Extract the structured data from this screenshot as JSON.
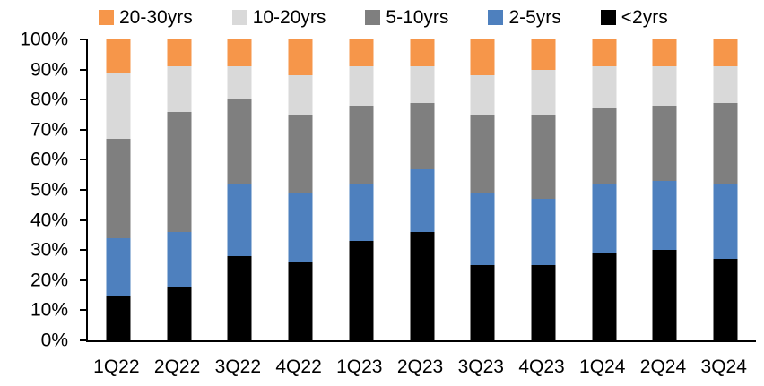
{
  "colors": {
    "background": "#ffffff",
    "axis": "#000000",
    "text": "#000000"
  },
  "chart_data": {
    "type": "bar",
    "stacked": true,
    "percent_stacked": true,
    "title": "",
    "xlabel": "",
    "ylabel": "",
    "ylim": [
      0,
      100
    ],
    "grid": false,
    "legend_position": "top",
    "categories": [
      "1Q22",
      "2Q22",
      "3Q22",
      "4Q22",
      "1Q23",
      "2Q23",
      "3Q23",
      "4Q23",
      "1Q24",
      "2Q24",
      "3Q24"
    ],
    "series": [
      {
        "name": "<2yrs",
        "color": "#000000",
        "values": [
          15,
          18,
          28,
          26,
          33,
          36,
          25,
          25,
          29,
          30,
          27
        ]
      },
      {
        "name": "2-5yrs",
        "color": "#4E80BE",
        "values": [
          19,
          18,
          24,
          23,
          19,
          21,
          24,
          22,
          23,
          23,
          25
        ]
      },
      {
        "name": "5-10yrs",
        "color": "#7F7F7F",
        "values": [
          33,
          40,
          28,
          26,
          26,
          22,
          26,
          28,
          25,
          25,
          27
        ]
      },
      {
        "name": "10-20yrs",
        "color": "#D9D9D9",
        "values": [
          22,
          15,
          11,
          13,
          13,
          12,
          13,
          15,
          14,
          13,
          12
        ]
      },
      {
        "name": "20-30yrs",
        "color": "#F6964A",
        "values": [
          11,
          9,
          9,
          12,
          9,
          9,
          12,
          10,
          9,
          9,
          9
        ]
      }
    ],
    "legend": [
      "20-30yrs",
      "10-20yrs",
      "5-10yrs",
      "2-5yrs",
      "<2yrs"
    ],
    "yticks": [
      "0%",
      "10%",
      "20%",
      "30%",
      "40%",
      "50%",
      "60%",
      "70%",
      "80%",
      "90%",
      "100%"
    ]
  }
}
